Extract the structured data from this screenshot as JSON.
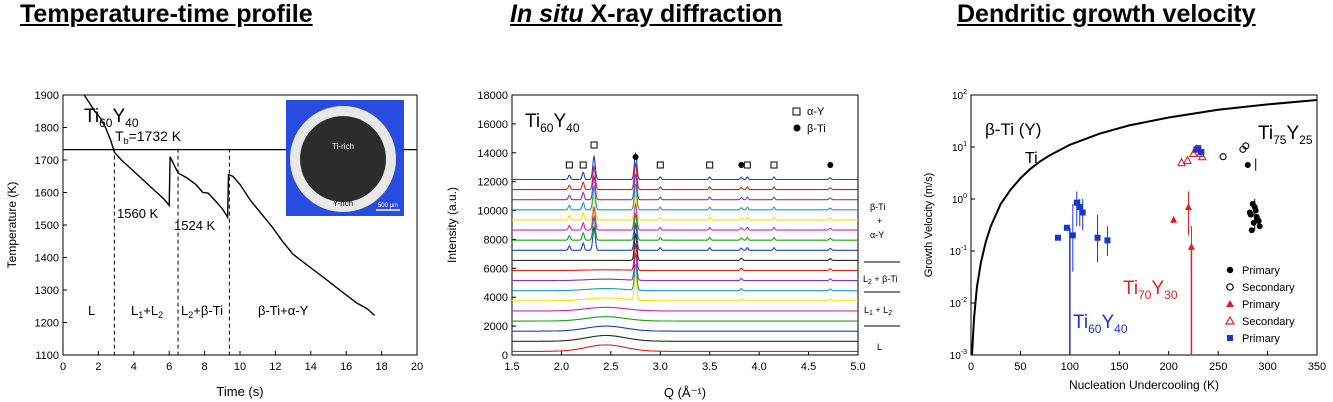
{
  "headings": {
    "left": "Temperature-time  profile",
    "middle_italic": "In situ",
    "middle_rest": " X-ray diffraction",
    "right": "Dendritic growth velocity"
  },
  "chart_data": [
    {
      "type": "line",
      "ylabel": "Temperature (K)",
      "xlabel": "Time (s)",
      "xlim": [
        0,
        20
      ],
      "ylim": [
        1100,
        1900
      ],
      "xticks": [
        "0",
        "2",
        "4",
        "6",
        "8",
        "10",
        "12",
        "14",
        "16",
        "18",
        "20"
      ],
      "yticks": [
        "1100",
        "1200",
        "1300",
        "1400",
        "1500",
        "1600",
        "1700",
        "1800",
        "1900"
      ],
      "alloy_label": {
        "base": "Ti",
        "sub1": "60",
        "mid": "Y",
        "sub2": "40"
      },
      "tb_label": {
        "base": "T",
        "sub": "b",
        "rest": "=1732 K"
      },
      "tb_value": 1732,
      "peak_labels": [
        "1560 K",
        "1524 K"
      ],
      "phase_labels": {
        "L": "L",
        "L1L2": {
          "a": "L",
          "s1": "1",
          "b": "+L",
          "s2": "2"
        },
        "L2bTi": {
          "a": "L",
          "s1": "2",
          "b": "+β-Ti"
        },
        "bTiaY": "β-Ti+α-Y"
      },
      "phase_boundaries": [
        2.9,
        6.5,
        9.4
      ],
      "inset_labels": [
        "Ti-rich",
        "Y-rich",
        "500 μm"
      ],
      "series": [
        {
          "x": [
            1.2,
            1.5,
            1.8,
            2.1,
            2.4,
            2.7,
            2.9,
            3.3,
            3.7,
            4.1,
            4.5,
            4.9,
            5.3,
            5.7,
            6.0,
            6.05,
            6.5,
            7.0,
            7.5,
            7.9,
            8.2,
            8.6,
            9.0,
            9.3,
            9.35,
            9.6,
            10.0,
            10.6,
            11.2,
            11.8,
            12.4,
            13.0,
            13.6,
            14.2,
            14.8,
            15.4,
            16.0,
            16.6,
            17.2,
            17.6
          ],
          "y": [
            1900,
            1875,
            1850,
            1830,
            1800,
            1760,
            1724,
            1700,
            1680,
            1660,
            1640,
            1620,
            1600,
            1580,
            1560,
            1710,
            1660,
            1645,
            1625,
            1600,
            1598,
            1575,
            1550,
            1524,
            1655,
            1650,
            1625,
            1575,
            1535,
            1495,
            1450,
            1410,
            1385,
            1360,
            1335,
            1310,
            1285,
            1260,
            1242,
            1222
          ]
        }
      ]
    },
    {
      "type": "line",
      "ylabel": "Intensity (a.u.)",
      "xlabel": "Q (Å⁻¹)",
      "xlim": [
        1.5,
        5.0
      ],
      "ylim": [
        0,
        18000
      ],
      "xticks": [
        "1.5",
        "2.0",
        "2.5",
        "3.0",
        "3.5",
        "4.0",
        "4.5",
        "5.0"
      ],
      "yticks": [
        "0",
        "2000",
        "4000",
        "6000",
        "8000",
        "10000",
        "12000",
        "14000",
        "16000",
        "18000"
      ],
      "alloy_label": {
        "base": "Ti",
        "sub1": "60",
        "mid": "Y",
        "sub2": "40"
      },
      "legend": [
        "α-Y",
        "β-Ti"
      ],
      "side_labels": [
        "β-Ti",
        "+",
        "α-Y",
        "L",
        "2",
        " + β-Ti",
        "L",
        "1",
        " + L",
        "2",
        "L"
      ],
      "n_patterns": 18,
      "pattern_offset": 700,
      "series_colors": [
        "#e0201a",
        "#2a2a2a",
        "#1a40c8",
        "#18a018",
        "#d020c0",
        "#e8e800",
        "#10a0c0",
        "#8a2fd0",
        "#e0201a",
        "#2a2a2a",
        "#1a40c8",
        "#18a018",
        "#d020c0",
        "#e8e800",
        "#10a0c0",
        "#8a2fd0",
        "#e0201a",
        "#1a40c8"
      ],
      "alpha_Y_peaks_Q": [
        2.08,
        2.22,
        2.33,
        3.0,
        3.5,
        3.82,
        3.88,
        4.15
      ],
      "beta_Ti_peaks_Q": [
        2.75,
        3.82,
        4.72
      ],
      "liquid_peak_Q": 2.45
    },
    {
      "type": "scatter",
      "ylabel": "Growth Velocity (m/s)",
      "xlabel": "Nucleation Undercooling (K)",
      "xlim": [
        0,
        350
      ],
      "ylim_log10": [
        -3,
        2
      ],
      "xticks": [
        "0",
        "50",
        "100",
        "150",
        "200",
        "250",
        "300",
        "350"
      ],
      "yticks": [
        {
          "b": "10",
          "e": "-3"
        },
        {
          "b": "10",
          "e": "-2"
        },
        {
          "b": "10",
          "e": "-1"
        },
        {
          "b": "10",
          "e": "0"
        },
        {
          "b": "10",
          "e": "1"
        },
        {
          "b": "10",
          "e": "2"
        }
      ],
      "annotations": {
        "phase": "β-Ti (Y)",
        "curve": "Ti",
        "ti75": {
          "base": "Ti",
          "sub1": "75",
          "mid": "Y",
          "sub2": "25"
        },
        "ti70": {
          "base": "Ti",
          "sub1": "70",
          "mid": "Y",
          "sub2": "30"
        },
        "ti60": {
          "base": "Ti",
          "sub1": "60",
          "mid": "Y",
          "sub2": "40"
        }
      },
      "legend": [
        "Primary",
        "Secondary",
        "Primary",
        "Secondary",
        "Primary"
      ],
      "colors": {
        "ti75": "#000000",
        "ti70": "#e02020",
        "ti60": "#1a35d0"
      },
      "model_curve": {
        "x": [
          1,
          3,
          6,
          10,
          15,
          20,
          30,
          40,
          50,
          60,
          70,
          80,
          100,
          130,
          160,
          200,
          250,
          300,
          350
        ],
        "y": [
          0.001,
          0.005,
          0.02,
          0.06,
          0.15,
          0.3,
          0.8,
          1.5,
          2.5,
          3.8,
          5.3,
          7,
          11,
          18,
          26,
          37,
          52,
          66,
          80
        ]
      },
      "series": [
        {
          "name": "Ti75Y25 Primary",
          "x": [
            280,
            283,
            286,
            288,
            290,
            292,
            284,
            287,
            289,
            282,
            285,
            291
          ],
          "y": [
            4.5,
            0.5,
            0.35,
            0.6,
            0.4,
            0.3,
            0.25,
            0.7,
            0.45,
            0.55,
            0.8,
            0.38
          ]
        },
        {
          "name": "Ti75Y25 Secondary",
          "x": [
            255,
            275,
            278
          ],
          "y": [
            6.5,
            9,
            10.5
          ]
        },
        {
          "name": "Ti70Y30 Primary",
          "x": [
            205,
            220,
            223
          ],
          "y": [
            0.4,
            0.7,
            0.12
          ]
        },
        {
          "name": "Ti70Y30 Secondary",
          "x": [
            213,
            219,
            225,
            228,
            232,
            234
          ],
          "y": [
            5,
            5.5,
            7.5,
            9,
            7.5,
            6.5
          ]
        },
        {
          "name": "Ti60Y40 Primary",
          "x": [
            88,
            97,
            103,
            107,
            110,
            113,
            128,
            138,
            228,
            230,
            233
          ],
          "y": [
            0.18,
            0.28,
            0.2,
            0.85,
            0.7,
            0.55,
            0.18,
            0.16,
            9,
            9.5,
            8
          ]
        }
      ]
    }
  ]
}
